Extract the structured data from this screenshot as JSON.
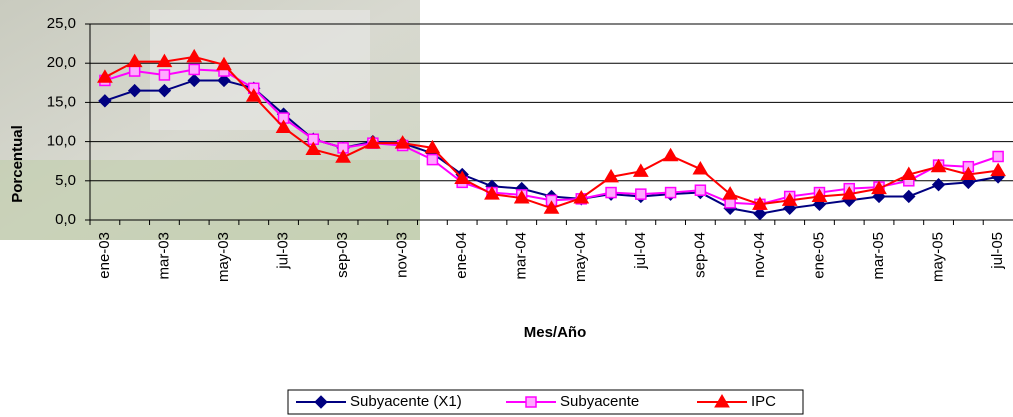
{
  "chart_data": {
    "type": "line",
    "x_label": "Mes/Año",
    "y_label": "Porcentual",
    "categories": [
      "ene-03",
      null,
      "mar-03",
      null,
      "may-03",
      null,
      "jul-03",
      null,
      "sep-03",
      null,
      "nov-03",
      null,
      "ene-04",
      null,
      "mar-04",
      null,
      "may-04",
      null,
      "jul-04",
      null,
      "sep-04",
      null,
      "nov-04",
      null,
      "ene-05",
      null,
      "mar-05",
      null,
      "may-05",
      null,
      "jul-05"
    ],
    "series": [
      {
        "name": "Subyacente (X1)",
        "color": "#000080",
        "marker": "diamond",
        "values": [
          15.2,
          16.5,
          16.5,
          17.8,
          17.8,
          16.8,
          13.5,
          10.3,
          9.2,
          10.0,
          9.8,
          8.5,
          5.8,
          4.3,
          4.0,
          3.0,
          2.7,
          3.3,
          3.0,
          3.3,
          3.5,
          1.5,
          0.8,
          1.5,
          2.0,
          2.5,
          3.0,
          3.0,
          4.5,
          4.8,
          5.5
        ]
      },
      {
        "name": "Subyacente",
        "color": "#ff00ff",
        "marker": "square",
        "values": [
          17.8,
          19.0,
          18.5,
          19.2,
          19.0,
          16.8,
          13.0,
          10.3,
          9.2,
          9.8,
          9.5,
          7.7,
          4.8,
          3.5,
          3.2,
          2.5,
          2.7,
          3.5,
          3.3,
          3.5,
          3.8,
          2.2,
          2.0,
          3.0,
          3.5,
          4.0,
          4.2,
          5.0,
          7.0,
          6.8,
          8.1
        ]
      },
      {
        "name": "IPC",
        "color": "#ff0000",
        "marker": "triangle",
        "values": [
          18.2,
          20.2,
          20.2,
          20.8,
          19.8,
          15.8,
          11.8,
          9.0,
          8.0,
          9.8,
          9.8,
          9.2,
          5.3,
          3.3,
          2.8,
          1.5,
          2.8,
          5.5,
          6.2,
          8.2,
          6.5,
          3.3,
          2.0,
          2.5,
          3.0,
          3.3,
          4.0,
          5.8,
          6.8,
          5.8,
          6.3
        ]
      }
    ],
    "ylim": [
      0,
      25
    ],
    "yticks": [
      {
        "value": 0,
        "label": "0,0"
      },
      {
        "value": 5,
        "label": "5,0"
      },
      {
        "value": 10,
        "label": "10,0"
      },
      {
        "value": 15,
        "label": "15,0"
      },
      {
        "value": 20,
        "label": "20,0"
      },
      {
        "value": 25,
        "label": "25,0"
      }
    ],
    "grid": true,
    "legend": "bottom"
  }
}
